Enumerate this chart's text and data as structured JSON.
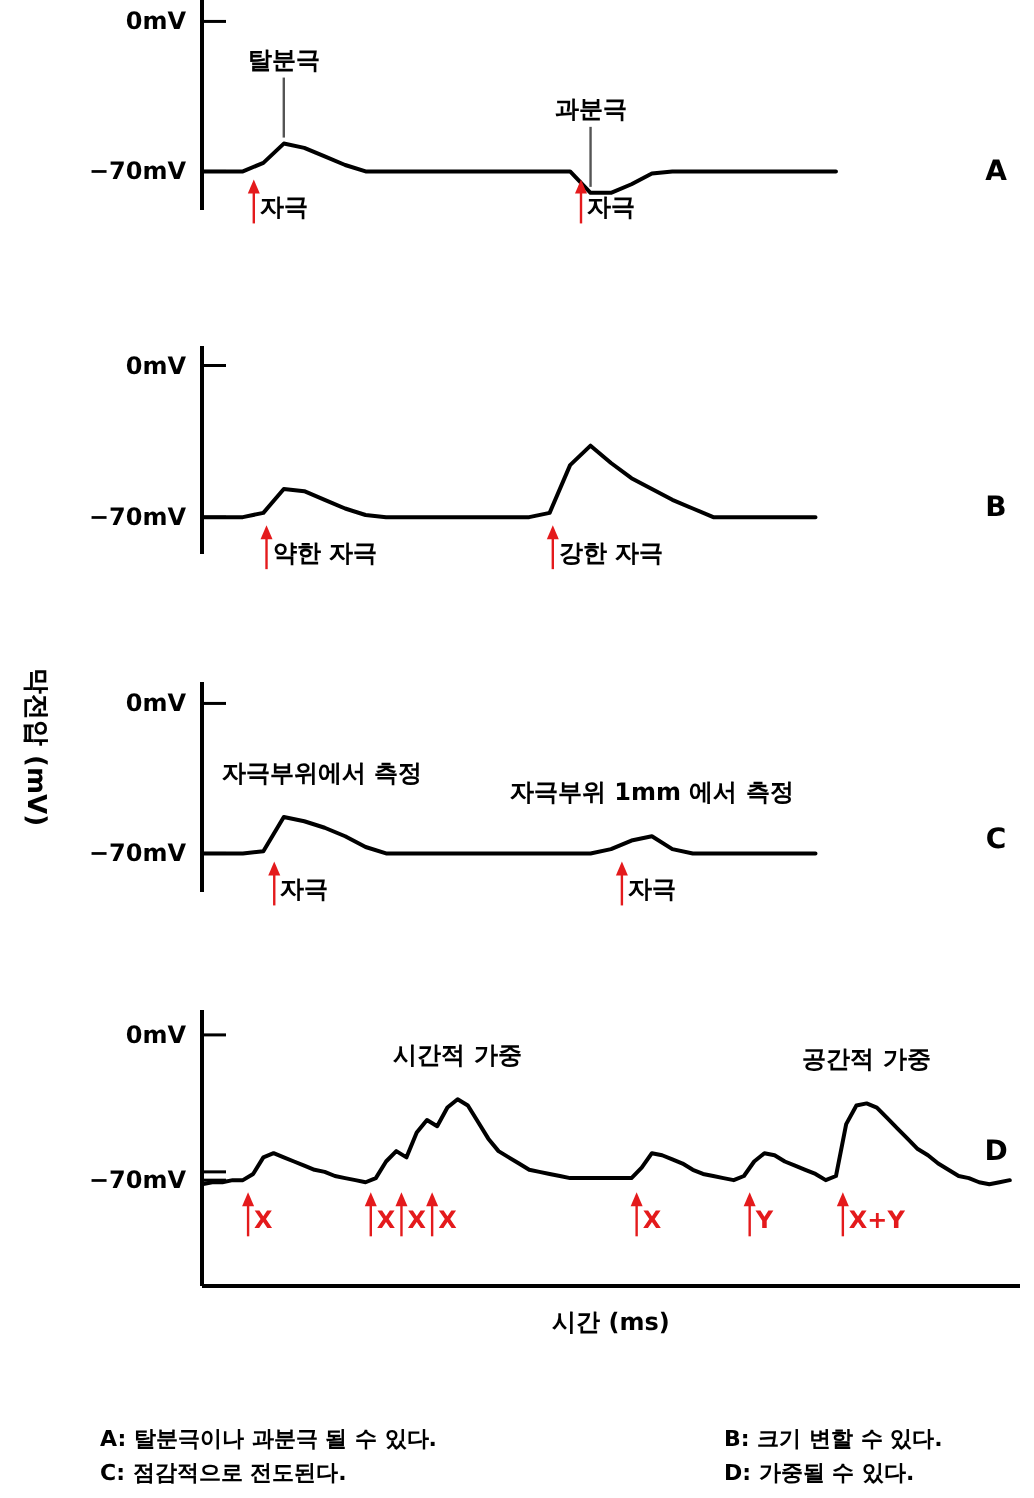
{
  "chart_data": [
    {
      "type": "line",
      "title": "A",
      "subtitle": "A: 탈분극이나 과분극 될 수 있다.",
      "ylim": [
        -88,
        10
      ],
      "yticks": [
        {
          "value": 0,
          "label": "0mV"
        },
        {
          "value": -70,
          "label": "−70mV"
        }
      ],
      "categories": [
        null,
        null,
        null,
        null,
        "자극",
        null,
        null,
        null,
        null,
        null,
        null,
        null,
        null,
        null,
        null,
        null,
        null,
        null,
        null,
        null,
        "자극",
        null,
        null,
        null,
        null,
        null,
        null,
        null,
        null,
        null,
        null,
        null,
        null,
        null,
        null,
        null,
        null,
        null,
        null,
        null
      ],
      "series": [
        {
          "color": "#000000",
          "values": [
            -70,
            -70,
            -70,
            -66,
            -57,
            -59,
            -63,
            -67,
            -70,
            -70,
            -70,
            -70,
            -70,
            -70,
            -70,
            -70,
            -70,
            -70,
            -70,
            -80,
            -80,
            -76,
            -71,
            -70,
            -70,
            -70,
            -70,
            -70,
            -70,
            -70,
            -70,
            -70,
            null,
            null,
            null,
            null,
            null,
            null,
            null,
            null
          ]
        }
      ],
      "annotations": [
        {
          "text": "탈분극",
          "y": -57
        },
        {
          "text": "과분극",
          "y": -80
        }
      ]
    },
    {
      "type": "line",
      "title": "B",
      "subtitle": "B: 크기 변할 수 있다.",
      "ylim": [
        -87,
        9
      ],
      "yticks": [
        {
          "value": 0,
          "label": "0mV"
        },
        {
          "value": -70,
          "label": "−70mV"
        }
      ],
      "categories": [
        null,
        null,
        null,
        null,
        null,
        null,
        "약한 자극",
        null,
        null,
        null,
        null,
        null,
        null,
        null,
        null,
        null,
        null,
        null,
        null,
        null,
        "강한 자극",
        null,
        null,
        null,
        null,
        null,
        null,
        null,
        null,
        null,
        null,
        null,
        null,
        null,
        null,
        null,
        null,
        null,
        null,
        null
      ],
      "series": [
        {
          "color": "#000000",
          "values": [
            -70,
            -70,
            -70,
            -68,
            -57,
            -58,
            -62,
            -66,
            -69,
            -70,
            -70,
            -70,
            -70,
            -70,
            -70,
            -70,
            -70,
            -68,
            -46,
            -37,
            -45,
            -52,
            -57,
            -62,
            -66,
            -70,
            -70,
            -70,
            -70,
            -70,
            -70,
            null,
            null,
            null,
            null,
            null,
            null,
            null,
            null,
            null
          ]
        }
      ]
    },
    {
      "type": "line",
      "title": "C",
      "subtitle": "C: 점감적으로 전도된다.",
      "ylabel": "막전압 (mV)",
      "ylim": [
        -88,
        10
      ],
      "yticks": [
        {
          "value": 0,
          "label": "0mV"
        },
        {
          "value": -70,
          "label": "−70mV"
        }
      ],
      "categories": [
        null,
        null,
        null,
        null,
        null,
        "자극",
        null,
        null,
        null,
        null,
        null,
        null,
        null,
        null,
        null,
        null,
        null,
        null,
        null,
        null,
        null,
        null,
        "자극",
        null,
        null,
        null,
        null,
        null,
        null,
        null,
        null,
        null,
        null,
        null,
        null,
        null,
        null,
        null,
        null,
        null
      ],
      "series": [
        {
          "color": "#000000",
          "values": [
            -70,
            -70,
            -70,
            -69,
            -53,
            -55,
            -58,
            -62,
            -67,
            -70,
            -70,
            -70,
            -70,
            -70,
            -70,
            -70,
            -70,
            -70,
            -70,
            -70,
            -68,
            -64,
            -62,
            -68,
            -70,
            -70,
            -70,
            -70,
            -70,
            -70,
            -70,
            null,
            null,
            null,
            null,
            null,
            null,
            null,
            null,
            null
          ]
        }
      ],
      "annotations": [
        "자극부위에서 측정",
        "자극부위 1mm 에서 측정"
      ]
    },
    {
      "type": "line",
      "title": "D",
      "subtitle": "D: 가중될 수 있다.",
      "xlabel": "시간 (ms)",
      "ylim": [
        -121,
        12
      ],
      "yticks": [
        {
          "value": 0,
          "label": "0mV"
        },
        {
          "value": -66,
          "label": null
        },
        {
          "value": -70,
          "label": "−70mV"
        }
      ],
      "categories": [
        null,
        null,
        null,
        null,
        null,
        null,
        "X",
        null,
        null,
        null,
        null,
        null,
        null,
        null,
        null,
        null,
        null,
        null,
        "X",
        null,
        null,
        "X",
        null,
        null,
        "X",
        null,
        null,
        null,
        null,
        null,
        null,
        null,
        null,
        null,
        null,
        null,
        null,
        null,
        null,
        null,
        null,
        null,
        null,
        null,
        "X",
        null,
        null,
        null,
        null,
        null,
        null,
        null,
        null,
        null,
        null,
        "Y",
        null,
        null,
        null,
        null,
        null,
        null,
        null,
        null,
        null,
        null,
        "X+Y",
        null,
        null,
        null,
        null,
        null,
        null,
        null,
        null,
        null,
        null,
        null,
        null,
        null
      ],
      "series": [
        {
          "color": "#000000",
          "values": [
            -72,
            -71,
            -71,
            -70,
            -70,
            -67,
            -59,
            -57,
            -59,
            -61,
            -63,
            -65,
            -66,
            -68,
            -69,
            -70,
            -71,
            -69,
            -61,
            -56,
            -59,
            -47,
            -41,
            -44,
            -35,
            -31,
            -34,
            -42,
            -50,
            -56,
            -59,
            -62,
            -65,
            -66,
            -67,
            -68,
            -69,
            -69,
            -69,
            -69,
            -69,
            -69,
            -69,
            -64,
            -57,
            -58,
            -60,
            -62,
            -65,
            -67,
            -68,
            -69,
            -70,
            -68,
            -61,
            -57,
            -58,
            -61,
            -63,
            -65,
            -67,
            -70,
            -68,
            -43,
            -34,
            -33,
            -35,
            -40,
            -45,
            -50,
            -55,
            -58,
            -62,
            -65,
            -68,
            -69,
            -71,
            -72,
            -71,
            -70
          ]
        }
      ],
      "annotations": [
        "시간적 가중",
        "공간적 가중"
      ]
    }
  ]
}
